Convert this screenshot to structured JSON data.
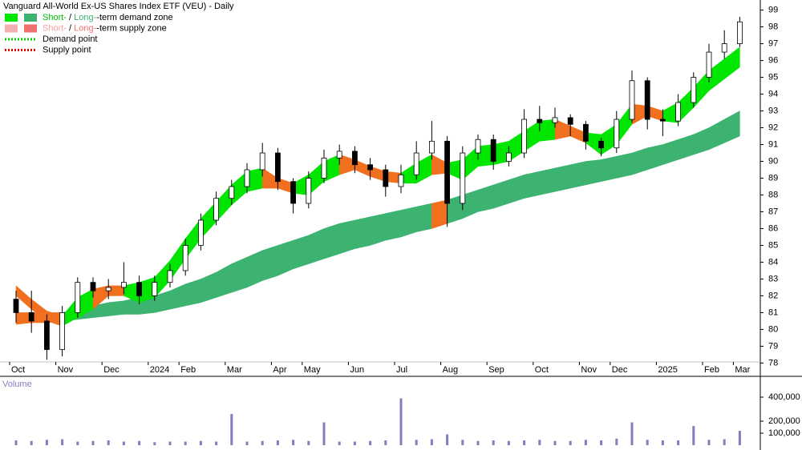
{
  "chart_data": {
    "type": "candlestick",
    "title": "Vanguard All-World Ex-US Shares Index ETF (VEU) - Daily",
    "categories": [
      "Oct",
      null,
      null,
      "Nov",
      null,
      null,
      "Dec",
      null,
      null,
      "2024",
      null,
      "Feb",
      null,
      null,
      "Mar",
      null,
      null,
      "Apr",
      null,
      "May",
      null,
      null,
      "Jun",
      null,
      null,
      "Jul",
      null,
      null,
      "Aug",
      null,
      null,
      "Sep",
      null,
      null,
      "Oct",
      null,
      null,
      "Nov",
      null,
      "Dec",
      null,
      null,
      "2025",
      null,
      null,
      "Feb",
      null,
      "Mar"
    ],
    "open": [
      81.8,
      81,
      80.5,
      78.8,
      81,
      82.8,
      82.3,
      82.5,
      82.8,
      82,
      82.8,
      83.5,
      85,
      86.5,
      87.8,
      88.5,
      89.5,
      90.5,
      88.8,
      87.5,
      89,
      90.2,
      90.6,
      89.8,
      89.5,
      88.5,
      89.2,
      90.5,
      91.2,
      87.5,
      90.5,
      91.3,
      90,
      90.5,
      92.5,
      92.3,
      92.6,
      92.2,
      91.2,
      90.8,
      92.5,
      94.8,
      92.5,
      92.4,
      93.5,
      95,
      96.5,
      97
    ],
    "high": [
      82.3,
      82.3,
      80.9,
      81.4,
      83.1,
      83.1,
      83,
      84,
      83.2,
      83.2,
      83.9,
      85.4,
      86.9,
      88.2,
      88.9,
      89.9,
      91.1,
      90.8,
      89,
      89.4,
      90.7,
      91,
      90.9,
      90.2,
      89.8,
      89.8,
      91.2,
      92.4,
      91.5,
      90.9,
      91.6,
      91.6,
      90.9,
      93.1,
      93.3,
      93.2,
      92.8,
      92.4,
      91.4,
      93,
      95.4,
      95,
      93.1,
      94,
      95.3,
      97,
      97.8,
      98.6
    ],
    "low": [
      80.4,
      79.8,
      78.2,
      78.4,
      80.7,
      81.9,
      81.8,
      82.1,
      81.5,
      81.7,
      82.5,
      83.2,
      84.7,
      86.2,
      87.4,
      88.1,
      89.1,
      88.3,
      86.9,
      87.2,
      88.7,
      89.8,
      89.3,
      88.9,
      87.9,
      88.1,
      88.9,
      90.1,
      86.1,
      87.1,
      90.1,
      89.5,
      89.7,
      90.2,
      91.8,
      92,
      91.5,
      90.7,
      90.3,
      90.5,
      92.3,
      91.9,
      91.5,
      92.1,
      93.2,
      94.7,
      96.1,
      96.8
    ],
    "close": [
      81,
      80.5,
      78.8,
      81,
      82.8,
      82.3,
      82.5,
      82.8,
      82,
      82.8,
      83.5,
      85,
      86.5,
      87.8,
      88.5,
      89.5,
      90.5,
      88.8,
      87.5,
      89,
      90.2,
      90.6,
      89.8,
      89.5,
      88.5,
      89.2,
      90.5,
      91.2,
      87.5,
      90.5,
      91.3,
      90,
      90.5,
      92.5,
      92.3,
      92.6,
      92.2,
      91.2,
      90.8,
      92.5,
      94.8,
      92.5,
      92.4,
      93.5,
      95,
      96.5,
      97,
      98.3
    ],
    "up_color": "#ffffff",
    "down_color": "#000000",
    "bands": [
      {
        "upper": [
          81.0,
          81.0,
          81.0,
          81.0,
          81.2,
          81.4,
          81.6,
          81.7,
          81.9,
          82.0,
          82.3,
          82.7,
          83.0,
          83.4,
          83.9,
          84.3,
          84.7,
          85.0,
          85.3,
          85.6,
          86.0,
          86.3,
          86.5,
          86.7,
          86.9,
          87.1,
          87.3,
          87.5,
          87.7,
          88.0,
          88.3,
          88.6,
          88.9,
          89.2,
          89.4,
          89.6,
          89.8,
          90.0,
          90.1,
          90.3,
          90.5,
          90.8,
          91.0,
          91.3,
          91.6,
          92.0,
          92.5,
          93.0
        ],
        "lower": [
          80.3,
          80.4,
          80.4,
          80.5,
          80.6,
          80.7,
          80.8,
          80.9,
          80.9,
          81.0,
          81.2,
          81.4,
          81.6,
          81.9,
          82.2,
          82.5,
          82.9,
          83.2,
          83.6,
          83.9,
          84.2,
          84.5,
          84.8,
          85.0,
          85.3,
          85.5,
          85.8,
          86.0,
          86.3,
          86.6,
          87.0,
          87.2,
          87.5,
          87.8,
          88.0,
          88.2,
          88.4,
          88.6,
          88.8,
          89.0,
          89.2,
          89.5,
          89.8,
          90.1,
          90.4,
          90.7,
          91.1,
          91.5
        ],
        "colors": [
          "#f07020",
          "#f07020",
          "#f07020",
          "#f07020",
          "#3cb371",
          "#3cb371",
          "#3cb371",
          "#3cb371",
          "#3cb371",
          "#3cb371",
          "#3cb371",
          "#3cb371",
          "#3cb371",
          "#3cb371",
          "#3cb371",
          "#3cb371",
          "#3cb371",
          "#3cb371",
          "#3cb371",
          "#3cb371",
          "#3cb371",
          "#3cb371",
          "#3cb371",
          "#3cb371",
          "#3cb371",
          "#3cb371",
          "#3cb371",
          "#3cb371",
          "#f07020",
          "#3cb371",
          "#3cb371",
          "#3cb371",
          "#3cb371",
          "#3cb371",
          "#3cb371",
          "#3cb371",
          "#3cb371",
          "#3cb371",
          "#3cb371",
          "#3cb371",
          "#3cb371",
          "#3cb371",
          "#3cb371",
          "#3cb371",
          "#3cb371",
          "#3cb371",
          "#3cb371",
          "#3cb371"
        ]
      },
      {
        "upper": [
          82.6,
          81.8,
          81.1,
          80.8,
          81.9,
          82.4,
          82.6,
          82.6,
          82.8,
          83.1,
          84.1,
          85.4,
          86.6,
          87.6,
          88.6,
          89.4,
          89.6,
          89.0,
          88.7,
          89.2,
          90.0,
          90.4,
          90.1,
          89.7,
          89.4,
          89.3,
          89.9,
          90.4,
          89.9,
          90.1,
          90.9,
          91.0,
          91.2,
          91.8,
          92.4,
          92.5,
          92.1,
          91.7,
          91.6,
          92.2,
          93.4,
          93.3,
          93.0,
          93.5,
          94.4,
          95.4,
          96.1,
          96.8
        ],
        "lower": [
          82.0,
          81.2,
          80.5,
          80.2,
          80.7,
          81.2,
          82.0,
          82.0,
          81.6,
          81.9,
          82.9,
          84.2,
          85.4,
          86.4,
          87.4,
          88.2,
          88.4,
          88.4,
          88.1,
          88.0,
          88.8,
          89.2,
          89.5,
          89.1,
          88.8,
          88.7,
          88.7,
          89.2,
          89.3,
          88.9,
          89.7,
          89.8,
          90.0,
          90.6,
          91.2,
          91.3,
          91.5,
          91.1,
          90.4,
          91.0,
          92.2,
          92.7,
          92.4,
          92.3,
          93.2,
          94.2,
          94.9,
          95.6
        ],
        "colors": [
          "#f07020",
          "#f07020",
          "#f07020",
          "#f07020",
          "#00e600",
          "#00e600",
          "#f07020",
          "#f07020",
          "#00e600",
          "#00e600",
          "#00e600",
          "#00e600",
          "#00e600",
          "#00e600",
          "#00e600",
          "#00e600",
          "#00e600",
          "#f07020",
          "#f07020",
          "#00e600",
          "#00e600",
          "#00e600",
          "#f07020",
          "#f07020",
          "#f07020",
          "#f07020",
          "#00e600",
          "#00e600",
          "#f07020",
          "#00e600",
          "#00e600",
          "#00e600",
          "#00e600",
          "#00e600",
          "#00e600",
          "#00e600",
          "#f07020",
          "#f07020",
          "#00e600",
          "#00e600",
          "#00e600",
          "#f07020",
          "#f07020",
          "#00e600",
          "#00e600",
          "#00e600",
          "#00e600",
          "#00e600"
        ]
      }
    ],
    "ylim": [
      77.4,
      99.6
    ],
    "yticks": [
      78,
      79,
      80,
      81,
      82,
      83,
      84,
      85,
      86,
      87,
      88,
      89,
      90,
      91,
      92,
      93,
      94,
      95,
      96,
      97,
      98,
      99
    ],
    "volume_label": "Volume",
    "volume": [
      40000,
      35000,
      45000,
      50000,
      30000,
      35000,
      40000,
      30000,
      35000,
      25000,
      30000,
      30000,
      35000,
      30000,
      260000,
      30000,
      35000,
      40000,
      45000,
      35000,
      190000,
      30000,
      30000,
      35000,
      40000,
      390000,
      45000,
      50000,
      90000,
      45000,
      35000,
      40000,
      35000,
      40000,
      45000,
      35000,
      35000,
      45000,
      40000,
      55000,
      190000,
      45000,
      40000,
      40000,
      160000,
      45000,
      50000,
      120000
    ],
    "volume_color": "#8080c0",
    "volume_ylim": [
      0,
      560000
    ],
    "volume_yticks": [
      {
        "value": 100000,
        "label": "100,000"
      },
      {
        "value": 200000,
        "label": "200,000"
      },
      {
        "value": 400000,
        "label": "400,000"
      }
    ],
    "legend": [
      {
        "swatches": [
          "#00e600",
          "#3cb371"
        ],
        "parts": [
          {
            "text": "Short-",
            "color": "#00c000"
          },
          {
            "text": " / ",
            "color": "#000000"
          },
          {
            "text": "Long-",
            "color": "#3cb371"
          },
          {
            "text": "-term demand zone",
            "color": "#000000"
          }
        ]
      },
      {
        "swatches": [
          "#f4b0b0",
          "#f07070"
        ],
        "parts": [
          {
            "text": "Short-",
            "color": "#f4a0a0"
          },
          {
            "text": " / ",
            "color": "#000000"
          },
          {
            "text": "Long-",
            "color": "#f07070"
          },
          {
            "text": "-term supply zone",
            "color": "#000000"
          }
        ]
      },
      {
        "line": "#00d000",
        "parts": [
          {
            "text": "Demand point",
            "color": "#000000"
          }
        ]
      },
      {
        "line": "#e00000",
        "parts": [
          {
            "text": "Supply point",
            "color": "#000000"
          }
        ]
      }
    ]
  }
}
